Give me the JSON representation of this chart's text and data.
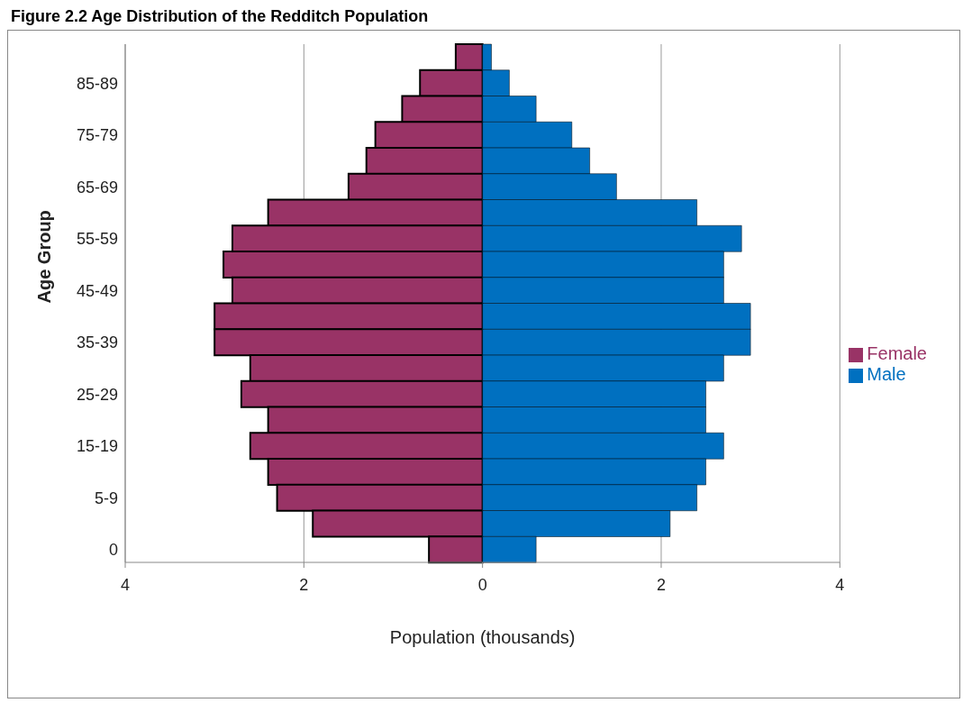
{
  "chart_data": {
    "type": "bar",
    "title": "Figure 2.2 Age Distribution of the Redditch Population",
    "orientation": "horizontal",
    "stacked": true,
    "categories": [
      null,
      "85-89",
      null,
      "75-79",
      null,
      "65-69",
      null,
      "55-59",
      null,
      "45-49",
      null,
      "35-39",
      null,
      "25-29",
      null,
      "15-19",
      null,
      "5-9",
      null,
      "0"
    ],
    "series": [
      {
        "name": "Female",
        "color": "#993366",
        "values": [
          -0.3,
          -0.7,
          -0.9,
          -1.2,
          -1.3,
          -1.5,
          -2.4,
          -2.8,
          -2.9,
          -2.8,
          -3.0,
          -3.0,
          -2.6,
          -2.7,
          -2.4,
          -2.6,
          -2.4,
          -2.3,
          -1.9,
          -0.6
        ]
      },
      {
        "name": "Male",
        "color": "#0070c0",
        "values": [
          0.1,
          0.3,
          0.6,
          1.0,
          1.2,
          1.5,
          2.4,
          2.9,
          2.7,
          2.7,
          3.0,
          3.0,
          2.7,
          2.5,
          2.5,
          2.7,
          2.5,
          2.4,
          2.1,
          0.6
        ]
      }
    ],
    "xlim": [
      -4,
      4
    ],
    "xticks": [
      {
        "value": -4,
        "label": "4"
      },
      {
        "value": -2,
        "label": "2"
      },
      0,
      2,
      4
    ],
    "xlabel": "Population (thousands)",
    "ylabel": "Age Group",
    "grid": "x",
    "legend": "right"
  }
}
